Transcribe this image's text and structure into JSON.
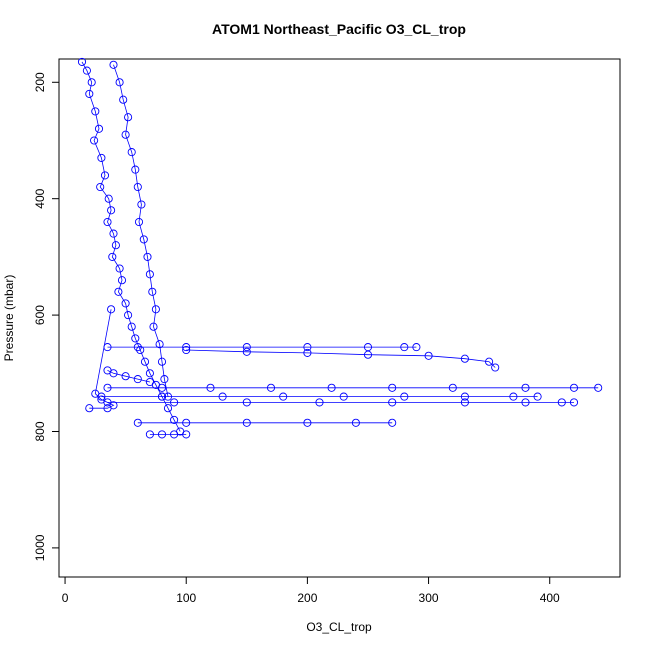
{
  "chart_data": {
    "type": "scatter",
    "title": "ATOM1 Northeast_Pacific O3_CL_trop",
    "xlabel": "O3_CL_trop",
    "ylabel": "Pressure (mbar)",
    "xlim": [
      -5,
      458
    ],
    "ylim": [
      1050,
      160
    ],
    "y_reversed": true,
    "grid": false,
    "marker": "open-circle",
    "connected": true,
    "color": "#0000ff",
    "xticks": [
      0,
      100,
      200,
      300,
      400
    ],
    "yticks": [
      200,
      400,
      600,
      800,
      1000
    ],
    "series": [
      {
        "x": [
          14,
          18,
          22,
          20,
          25,
          28,
          24,
          30,
          33,
          29,
          36,
          38,
          35,
          40,
          42,
          39,
          45,
          47,
          44,
          50,
          52,
          55,
          58,
          62,
          66,
          70,
          75,
          80,
          85,
          90,
          95
        ],
        "y": [
          165,
          180,
          200,
          220,
          250,
          280,
          300,
          330,
          360,
          380,
          400,
          420,
          440,
          460,
          480,
          500,
          520,
          540,
          560,
          580,
          600,
          620,
          640,
          660,
          680,
          700,
          720,
          740,
          760,
          780,
          800
        ]
      },
      {
        "x": [
          40,
          45,
          48,
          52,
          50,
          55,
          58,
          60,
          63,
          61,
          65,
          68,
          70,
          72,
          75,
          73,
          78,
          80,
          82,
          85
        ],
        "y": [
          170,
          200,
          230,
          260,
          290,
          320,
          350,
          380,
          410,
          440,
          470,
          500,
          530,
          560,
          590,
          620,
          650,
          680,
          710,
          740
        ]
      },
      {
        "x": [
          35,
          60,
          100,
          150,
          200,
          250,
          280,
          290
        ],
        "y": [
          655,
          655,
          655,
          655,
          655,
          655,
          655,
          655
        ]
      },
      {
        "x": [
          100,
          150,
          200,
          250,
          300,
          330,
          350,
          355
        ],
        "y": [
          660,
          663,
          665,
          668,
          670,
          675,
          680,
          690
        ]
      },
      {
        "x": [
          35,
          80,
          120,
          170,
          220,
          270,
          320,
          380,
          420,
          440
        ],
        "y": [
          725,
          725,
          725,
          725,
          725,
          725,
          725,
          725,
          725,
          725
        ]
      },
      {
        "x": [
          30,
          80,
          130,
          180,
          230,
          280,
          330,
          370,
          390
        ],
        "y": [
          740,
          740,
          740,
          740,
          740,
          740,
          740,
          740,
          740
        ]
      },
      {
        "x": [
          35,
          90,
          150,
          210,
          270,
          330,
          380,
          410,
          420
        ],
        "y": [
          750,
          750,
          750,
          750,
          750,
          750,
          750,
          750,
          750
        ]
      },
      {
        "x": [
          60,
          100,
          150,
          200,
          240,
          270
        ],
        "y": [
          785,
          785,
          785,
          785,
          785,
          785
        ]
      },
      {
        "x": [
          35,
          40,
          50,
          60,
          70
        ],
        "y": [
          695,
          700,
          705,
          710,
          715
        ]
      },
      {
        "x": [
          70,
          80,
          90,
          100
        ],
        "y": [
          805,
          805,
          805,
          805
        ]
      },
      {
        "x": [
          20,
          35,
          40,
          30,
          25,
          38
        ],
        "y": [
          760,
          760,
          755,
          745,
          735,
          590
        ]
      }
    ]
  }
}
